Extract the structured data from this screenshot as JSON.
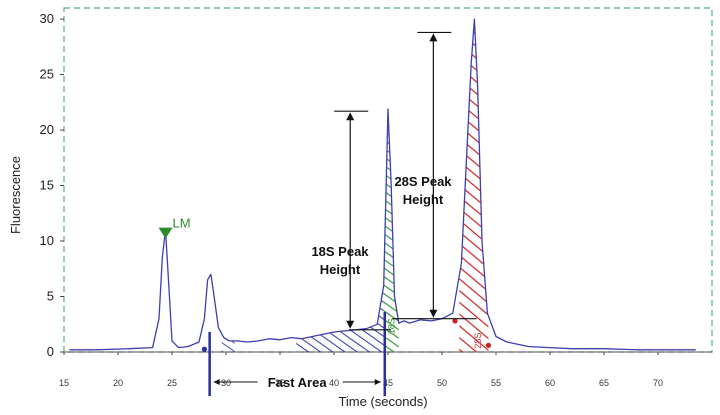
{
  "chart_data": {
    "type": "line",
    "title": "",
    "xlabel": "Time (seconds)",
    "ylabel": "Fluorescence",
    "xlim": [
      15,
      75
    ],
    "ylim": [
      0,
      31
    ],
    "xticks": [
      15,
      20,
      25,
      30,
      35,
      40,
      45,
      50,
      55,
      60,
      65,
      70
    ],
    "yticks": [
      0,
      5,
      10,
      15,
      20,
      25,
      30
    ],
    "grid": false,
    "series": [
      {
        "name": "",
        "color": "#3b3fb0",
        "x": [
          15.5,
          18,
          21,
          23.2,
          23.8,
          24.1,
          24.4,
          24.7,
          25.0,
          25.6,
          26.5,
          27.5,
          28.0,
          28.3,
          28.6,
          28.9,
          29.3,
          29.8,
          30.3,
          31,
          32,
          33,
          34,
          35,
          36,
          37,
          38,
          39,
          40,
          41,
          42,
          43,
          44,
          44.6,
          45.0,
          45.3,
          45.6,
          46.0,
          46.5,
          47,
          48,
          49,
          50,
          51,
          51.8,
          52.3,
          52.7,
          53.0,
          53.3,
          53.7,
          54.2,
          55.0,
          56,
          57,
          58,
          60,
          62,
          65,
          68,
          71,
          73.5
        ],
        "y": [
          0.2,
          0.2,
          0.3,
          0.4,
          3.0,
          8.5,
          11.0,
          6.0,
          1.0,
          0.4,
          0.5,
          0.9,
          3.0,
          6.5,
          7.0,
          5.0,
          2.2,
          1.3,
          1.0,
          1.0,
          0.9,
          1.0,
          1.2,
          1.1,
          1.3,
          1.2,
          1.4,
          1.6,
          1.8,
          1.9,
          2.0,
          2.1,
          2.5,
          6.0,
          21.9,
          15.0,
          5.0,
          2.6,
          2.8,
          2.6,
          2.9,
          2.8,
          3.0,
          3.5,
          8.0,
          18.0,
          26.0,
          30.0,
          24.0,
          10.0,
          3.5,
          1.4,
          0.9,
          0.7,
          0.5,
          0.4,
          0.3,
          0.3,
          0.2,
          0.2,
          0.2
        ]
      }
    ],
    "markers": [
      {
        "label": "LM",
        "x": 24.4,
        "y": 10.4
      }
    ],
    "annotations": {
      "peak18": "18S Peak\nHeight",
      "peak28": "28S Peak\nHeight",
      "fast_area": "Fast Area",
      "small_18s": "18S",
      "small_28s": "28S"
    },
    "fast_area_range": [
      28.3,
      44.7
    ],
    "peak18_arrow": {
      "x": 41.5,
      "from": 2.0,
      "to": 21.7,
      "baseline_x": [
        43.8,
        45.3
      ]
    },
    "peak28_arrow": {
      "x": 49.2,
      "from": 3.0,
      "to": 28.8,
      "baseline_x": [
        47.8,
        53.2
      ]
    }
  },
  "colors": {
    "trace": "#3b3fb0",
    "hatch_blue": "#2a2f9e",
    "hatch_green": "#3a9a3a",
    "hatch_red": "#cc2222",
    "frame": "#5aa88a",
    "marker": "#2e8b2e"
  }
}
